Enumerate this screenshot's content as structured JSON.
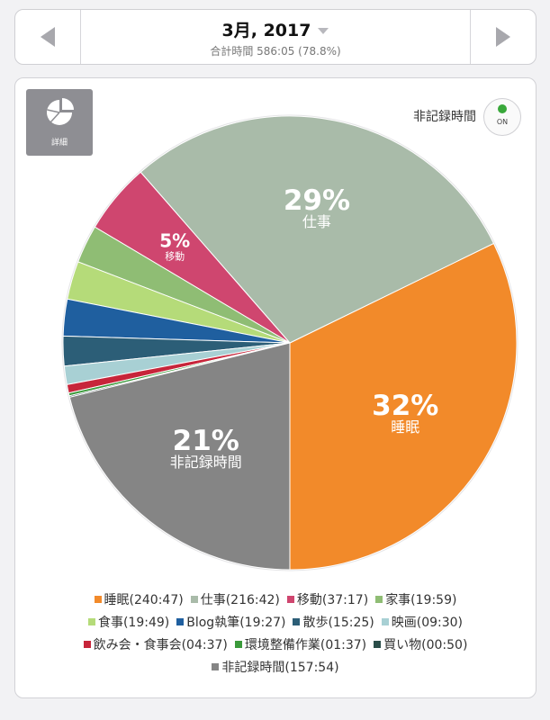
{
  "header": {
    "title": "3月, 2017",
    "subtitle": "合計時間 586:05 (78.8%)"
  },
  "card": {
    "detail_label": "詳細",
    "toggle_label": "非記録時間",
    "toggle_state": "ON"
  },
  "chart_data": {
    "type": "pie",
    "title": "",
    "unrecorded_included": true,
    "slices": [
      {
        "name": "睡眠",
        "duration": "240:47",
        "percent": 32,
        "color": "#f28a2a",
        "show_label": true
      },
      {
        "name": "仕事",
        "duration": "216:42",
        "percent": 29,
        "color": "#a9bba9",
        "show_label": true
      },
      {
        "name": "移動",
        "duration": "37:17",
        "percent": 5,
        "color": "#cf466f",
        "show_label": true
      },
      {
        "name": "家事",
        "duration": "19:59",
        "percent": 2.7,
        "color": "#8fbd74",
        "show_label": false
      },
      {
        "name": "食事",
        "duration": "19:49",
        "percent": 2.7,
        "color": "#b5db79",
        "show_label": false
      },
      {
        "name": "Blog執筆",
        "duration": "19:27",
        "percent": 2.6,
        "color": "#1f5f9f",
        "show_label": false
      },
      {
        "name": "散歩",
        "duration": "15:25",
        "percent": 2.1,
        "color": "#2c5e77",
        "show_label": false
      },
      {
        "name": "映画",
        "duration": "09:30",
        "percent": 1.3,
        "color": "#a8d0d4",
        "show_label": false
      },
      {
        "name": "飲み会・食事会",
        "duration": "04:37",
        "percent": 0.6,
        "color": "#c7253a",
        "show_label": false
      },
      {
        "name": "環境整備作業",
        "duration": "01:37",
        "percent": 0.2,
        "color": "#3b9a3b",
        "show_label": false
      },
      {
        "name": "買い物",
        "duration": "00:50",
        "percent": 0.1,
        "color": "#2b4e4a",
        "show_label": false
      },
      {
        "name": "非記録時間",
        "duration": "157:54",
        "percent": 21,
        "color": "#858585",
        "show_label": true
      }
    ]
  }
}
